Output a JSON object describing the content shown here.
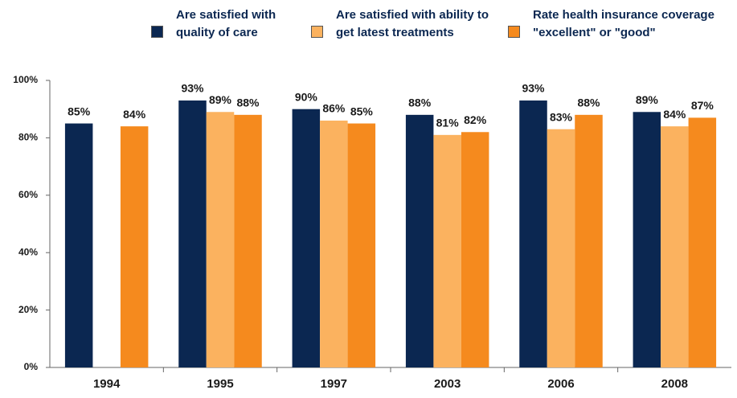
{
  "chart_data": {
    "type": "bar",
    "categories": [
      "1994",
      "1995",
      "1997",
      "2003",
      "2006",
      "2008"
    ],
    "series": [
      {
        "name": "Are satisfied with quality of care",
        "color": "#0b2751",
        "values": [
          85,
          93,
          90,
          88,
          93,
          89
        ],
        "value_labels": [
          "85%",
          "93%",
          "90%",
          "88%",
          "93%",
          "89%"
        ]
      },
      {
        "name": "Are satisfied with ability to get latest treatments",
        "color": "#fbb25f",
        "values": [
          null,
          89,
          86,
          81,
          83,
          84
        ],
        "value_labels": [
          null,
          "89%",
          "86%",
          "81%",
          "83%",
          "84%"
        ]
      },
      {
        "name": "Rate health insurance coverage \"excellent\" or \"good\"",
        "color": "#f58a1e",
        "values": [
          84,
          88,
          85,
          82,
          88,
          87
        ],
        "value_labels": [
          "84%",
          "88%",
          "85%",
          "82%",
          "88%",
          "87%"
        ]
      }
    ],
    "ylim": [
      0,
      100
    ],
    "yticks": [
      {
        "value": 0,
        "label": "0%"
      },
      {
        "value": 20,
        "label": "20%"
      },
      {
        "value": 40,
        "label": "40%"
      },
      {
        "value": 60,
        "label": "60%"
      },
      {
        "value": 80,
        "label": "80%"
      },
      {
        "value": 100,
        "label": "100%"
      }
    ],
    "legend": "top"
  }
}
